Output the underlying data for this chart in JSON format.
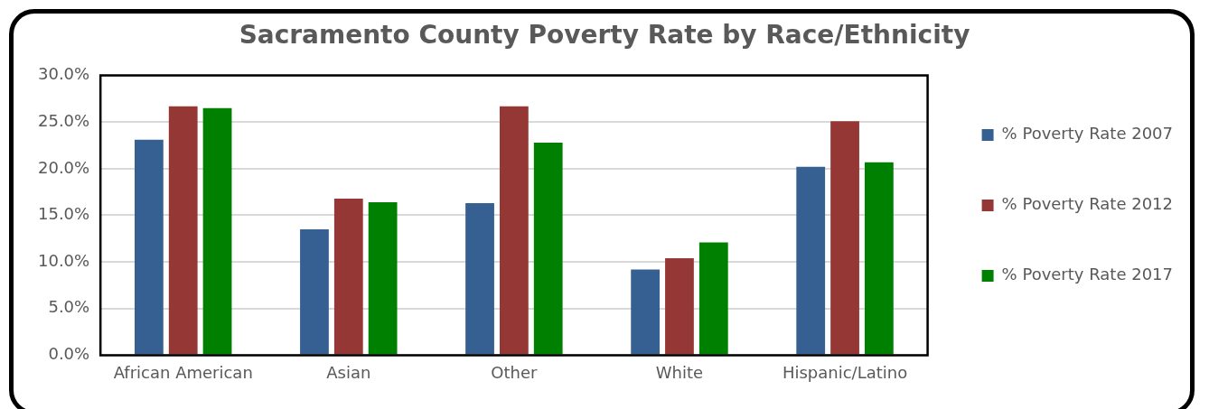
{
  "chart_data": {
    "type": "bar",
    "title": "Sacramento County Poverty Rate by Race/Ethnicity",
    "categories": [
      "African American",
      "Asian",
      "Other",
      "White",
      "Hispanic/Latino"
    ],
    "series": [
      {
        "name": "% Poverty Rate 2007",
        "color": "#376092",
        "values": [
          23.1,
          13.5,
          16.3,
          9.2,
          20.2
        ]
      },
      {
        "name": "% Poverty Rate 2012",
        "color": "#953735",
        "values": [
          26.7,
          16.8,
          26.7,
          10.4,
          25.1
        ]
      },
      {
        "name": "% Poverty Rate 2017",
        "color": "#008000",
        "values": [
          26.5,
          16.4,
          22.8,
          12.1,
          20.7
        ]
      }
    ],
    "ylim": [
      0,
      30
    ],
    "yticks": [
      {
        "value": 0,
        "label": "0.0%"
      },
      {
        "value": 5,
        "label": "5.0%"
      },
      {
        "value": 10,
        "label": "10.0%"
      },
      {
        "value": 15,
        "label": "15.0%"
      },
      {
        "value": 20,
        "label": "20.0%"
      },
      {
        "value": 25,
        "label": "25.0%"
      },
      {
        "value": 30,
        "label": "30.0%"
      }
    ],
    "grid": "y",
    "legend": "right"
  }
}
